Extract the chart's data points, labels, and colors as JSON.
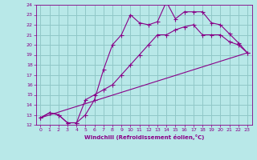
{
  "xlabel": "Windchill (Refroidissement éolien,°C)",
  "xlim": [
    -0.5,
    23.5
  ],
  "ylim": [
    12,
    24
  ],
  "xticks": [
    0,
    1,
    2,
    3,
    4,
    5,
    6,
    7,
    8,
    9,
    10,
    11,
    12,
    13,
    14,
    15,
    16,
    17,
    18,
    19,
    20,
    21,
    22,
    23
  ],
  "yticks": [
    12,
    13,
    14,
    15,
    16,
    17,
    18,
    19,
    20,
    21,
    22,
    23,
    24
  ],
  "bg_color": "#b8e8e8",
  "grid_color": "#90c8c8",
  "line_color": "#880088",
  "line1_x": [
    0,
    1,
    2,
    3,
    4,
    5,
    6,
    7,
    8,
    9,
    10,
    11,
    12,
    13,
    14,
    15,
    16,
    17,
    18,
    19,
    20,
    21,
    22,
    23
  ],
  "line1_y": [
    12.7,
    13.2,
    13.0,
    12.2,
    12.2,
    13.0,
    14.5,
    17.5,
    20.0,
    21.0,
    23.0,
    22.2,
    22.0,
    22.3,
    24.3,
    22.6,
    23.3,
    23.3,
    23.3,
    22.2,
    22.0,
    21.1,
    20.2,
    19.2
  ],
  "line2_x": [
    0,
    1,
    2,
    3,
    4,
    5,
    6,
    7,
    8,
    9,
    10,
    11,
    12,
    13,
    14,
    15,
    16,
    17,
    18,
    19,
    20,
    21,
    22,
    23
  ],
  "line2_y": [
    12.7,
    13.2,
    13.0,
    12.2,
    12.2,
    14.5,
    15.0,
    15.5,
    16.0,
    17.0,
    18.0,
    19.0,
    20.0,
    21.0,
    21.0,
    21.5,
    21.8,
    22.0,
    21.0,
    21.0,
    21.0,
    20.3,
    20.0,
    19.2
  ],
  "line3_x": [
    0,
    23
  ],
  "line3_y": [
    12.7,
    19.2
  ]
}
